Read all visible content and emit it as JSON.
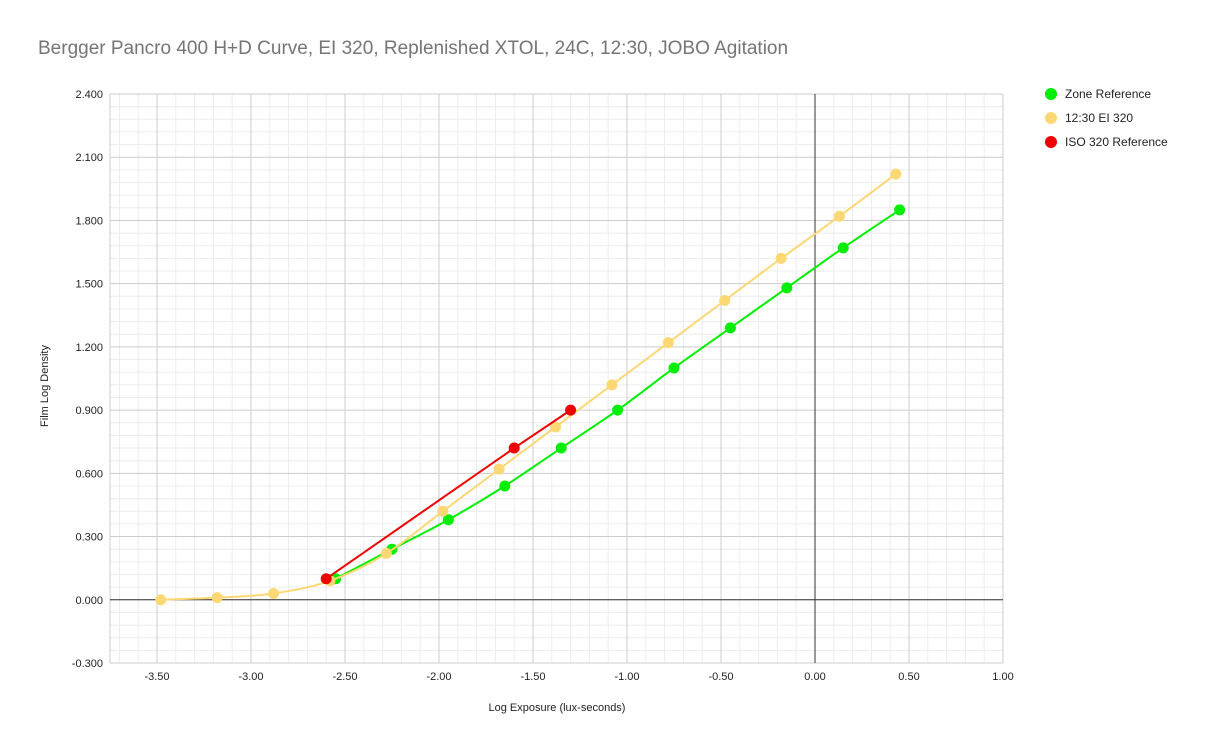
{
  "chart_data": {
    "type": "line",
    "title": "Bergger Pancro 400 H+D Curve, EI 320, Replenished XTOL, 24C, 12:30, JOBO Agitation",
    "xlabel": "Log Exposure (lux-seconds)",
    "ylabel": "Film Log Density",
    "xlim": [
      -3.75,
      1.0
    ],
    "ylim": [
      -0.3,
      2.4
    ],
    "x_ticks": [
      "-3.50",
      "-3.00",
      "-2.50",
      "-2.00",
      "-1.50",
      "-1.00",
      "-0.50",
      "0.00",
      "0.50",
      "1.00"
    ],
    "y_ticks": [
      "-0.300",
      "0.000",
      "0.300",
      "0.600",
      "0.900",
      "1.200",
      "1.500",
      "1.800",
      "2.100",
      "2.400"
    ],
    "grid": true,
    "legend_position": "right",
    "series": [
      {
        "name": "Zone Reference",
        "color": "#00ee00",
        "points": [
          [
            -2.55,
            0.1
          ],
          [
            -2.25,
            0.24
          ],
          [
            -1.95,
            0.38
          ],
          [
            -1.65,
            0.54
          ],
          [
            -1.35,
            0.72
          ],
          [
            -1.05,
            0.9
          ],
          [
            -0.75,
            1.1
          ],
          [
            -0.45,
            1.29
          ],
          [
            -0.15,
            1.48
          ],
          [
            0.15,
            1.67
          ],
          [
            0.45,
            1.85
          ]
        ]
      },
      {
        "name": "12:30 EI 320",
        "color": "#fcd874",
        "points": [
          [
            -3.48,
            0.0
          ],
          [
            -3.18,
            0.01
          ],
          [
            -2.88,
            0.03
          ],
          [
            -2.58,
            0.09
          ],
          [
            -2.28,
            0.22
          ],
          [
            -1.98,
            0.42
          ],
          [
            -1.68,
            0.62
          ],
          [
            -1.38,
            0.82
          ],
          [
            -1.08,
            1.02
          ],
          [
            -0.78,
            1.22
          ],
          [
            -0.48,
            1.42
          ],
          [
            -0.18,
            1.62
          ],
          [
            0.13,
            1.82
          ],
          [
            0.43,
            2.02
          ]
        ]
      },
      {
        "name": "ISO 320 Reference",
        "color": "#ee0000",
        "points": [
          [
            -2.6,
            0.1
          ],
          [
            -1.6,
            0.72
          ],
          [
            -1.3,
            0.9
          ]
        ]
      }
    ]
  }
}
